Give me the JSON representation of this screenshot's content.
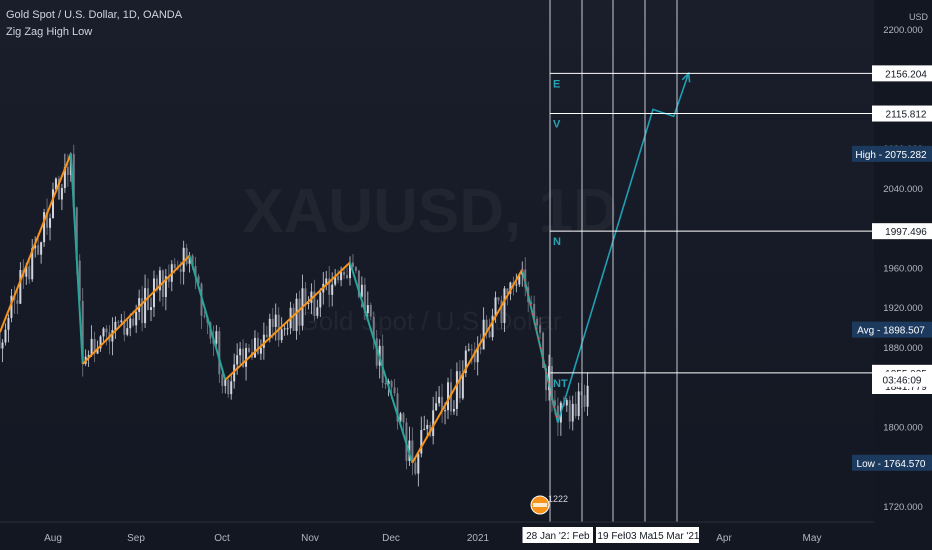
{
  "header": {
    "symbol_title": "Gold Spot / U.S. Dollar, 1D, OANDA",
    "indicator": "Zig Zag High Low"
  },
  "watermark": {
    "symbol": "XAUUSD, 1D",
    "name": "Gold Spot / U.S. Dollar"
  },
  "currency": "USD",
  "colors": {
    "background": "#131722",
    "up_candle": "#d1d4dc",
    "zigzag_up": "#f7931a",
    "zigzag_down": "#26a69a",
    "projection": "#1e9fb3",
    "level_line": "#ffffff",
    "low_label_bg": "#1c3a5e"
  },
  "chart_data": {
    "type": "line",
    "instrument": "XAUUSD",
    "timeframe": "1D",
    "y_range": [
      1705,
      2230
    ],
    "price_ticks": [
      "2200.000",
      "2160.000",
      "2120.000",
      "2080.000",
      "2040.000",
      "2000.000",
      "1960.000",
      "1920.000",
      "1880.000",
      "1840.000",
      "1800.000",
      "1760.000",
      "1720.000"
    ],
    "x_ticks": [
      "Aug",
      "Sep",
      "Oct",
      "Nov",
      "Dec",
      "2021",
      "Feb",
      "Mar",
      "Apr",
      "May"
    ],
    "time_labels": [
      "28 Jan '21",
      "Feb",
      "19 Feb",
      "03 Mar",
      "15 Mar '21"
    ],
    "zigzag_pivots": [
      {
        "date": "2020-07-01",
        "price": 1785
      },
      {
        "date": "2020-08-07",
        "price": 2075.282
      },
      {
        "date": "2020-08-11",
        "price": 1864
      },
      {
        "date": "2020-09-16",
        "price": 1973
      },
      {
        "date": "2020-09-28",
        "price": 1848
      },
      {
        "date": "2020-11-09",
        "price": 1966
      },
      {
        "date": "2020-11-30",
        "price": 1764.57
      },
      {
        "date": "2021-01-06",
        "price": 1959
      },
      {
        "date": "2021-01-18",
        "price": 1805
      }
    ],
    "projection_path": [
      {
        "date": "2021-01-18",
        "price": 1805
      },
      {
        "date": "2021-02-19",
        "price": 2120
      },
      {
        "date": "2021-02-26",
        "price": 2113
      },
      {
        "date": "2021-03-03",
        "price": 2156.204
      }
    ],
    "levels": [
      {
        "label": "E",
        "price": 2156.204
      },
      {
        "label": "V",
        "price": 2115.812
      },
      {
        "label": "N",
        "price": 1997.496
      },
      {
        "label": "NT",
        "price": 1855.035
      }
    ],
    "price_labels": {
      "e": "2156.204",
      "v": "2115.812",
      "high": "High - 2075.282",
      "n": "1997.496",
      "avg": "Avg - 1898.507",
      "nt": "1855.035",
      "countdown": "03:46:09",
      "last": "1841.779",
      "low": "Low - 1764.570"
    },
    "event_badge": "1222",
    "candle_seed": 20210128,
    "high": 2075.282,
    "low": 1764.57,
    "avg": 1898.507,
    "last": 1841.779
  }
}
